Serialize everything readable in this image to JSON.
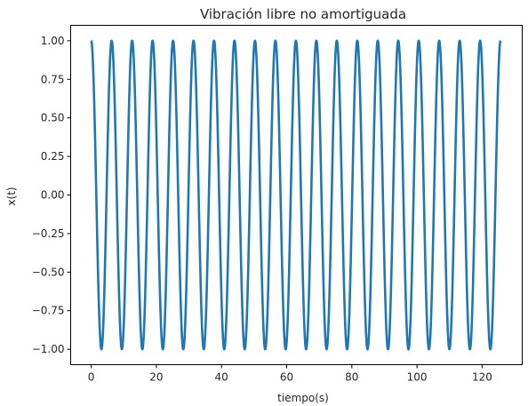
{
  "chart_data": {
    "type": "line",
    "title": "Vibración libre no amortiguada",
    "xlabel": "tiempo(s)",
    "ylabel": "x(t)",
    "xlim": [
      -6.3,
      132.3
    ],
    "ylim": [
      -1.1,
      1.1
    ],
    "x_ticks": [
      0,
      20,
      40,
      60,
      80,
      100,
      120
    ],
    "x_tick_labels": [
      "0",
      "20",
      "40",
      "60",
      "80",
      "100",
      "120"
    ],
    "y_ticks": [
      1.0,
      0.75,
      0.5,
      0.25,
      0.0,
      -0.25,
      -0.5,
      -0.75,
      -1.0
    ],
    "y_tick_labels": [
      "1.00",
      "0.75",
      "0.50",
      "0.25",
      "0.00",
      "−0.25",
      "−0.50",
      "−0.75",
      "−1.00"
    ],
    "grid": false,
    "series": [
      {
        "color": "#1f77b4",
        "function": "cos(t)",
        "x_start": 0,
        "x_end": 125.66,
        "peaks_x": [
          0,
          6.28,
          12.57,
          18.85,
          25.13,
          31.42,
          37.7,
          43.98,
          50.27,
          56.55,
          62.83,
          69.12,
          75.4,
          81.68,
          87.96,
          94.25,
          100.53,
          106.81,
          113.1,
          119.38,
          125.66
        ],
        "peaks_y": [
          1,
          1,
          1,
          1,
          1,
          1,
          1,
          1,
          1,
          1,
          1,
          1,
          1,
          1,
          1,
          1,
          1,
          1,
          1,
          1,
          1
        ],
        "troughs_x": [
          3.14,
          9.42,
          15.71,
          21.99,
          28.27,
          34.56,
          40.84,
          47.12,
          53.41,
          59.69,
          65.97,
          72.26,
          78.54,
          84.82,
          91.11,
          97.39,
          103.67,
          109.96,
          116.24,
          122.52
        ],
        "troughs_y": [
          -1,
          -1,
          -1,
          -1,
          -1,
          -1,
          -1,
          -1,
          -1,
          -1,
          -1,
          -1,
          -1,
          -1,
          -1,
          -1,
          -1,
          -1,
          -1,
          -1
        ]
      }
    ]
  }
}
